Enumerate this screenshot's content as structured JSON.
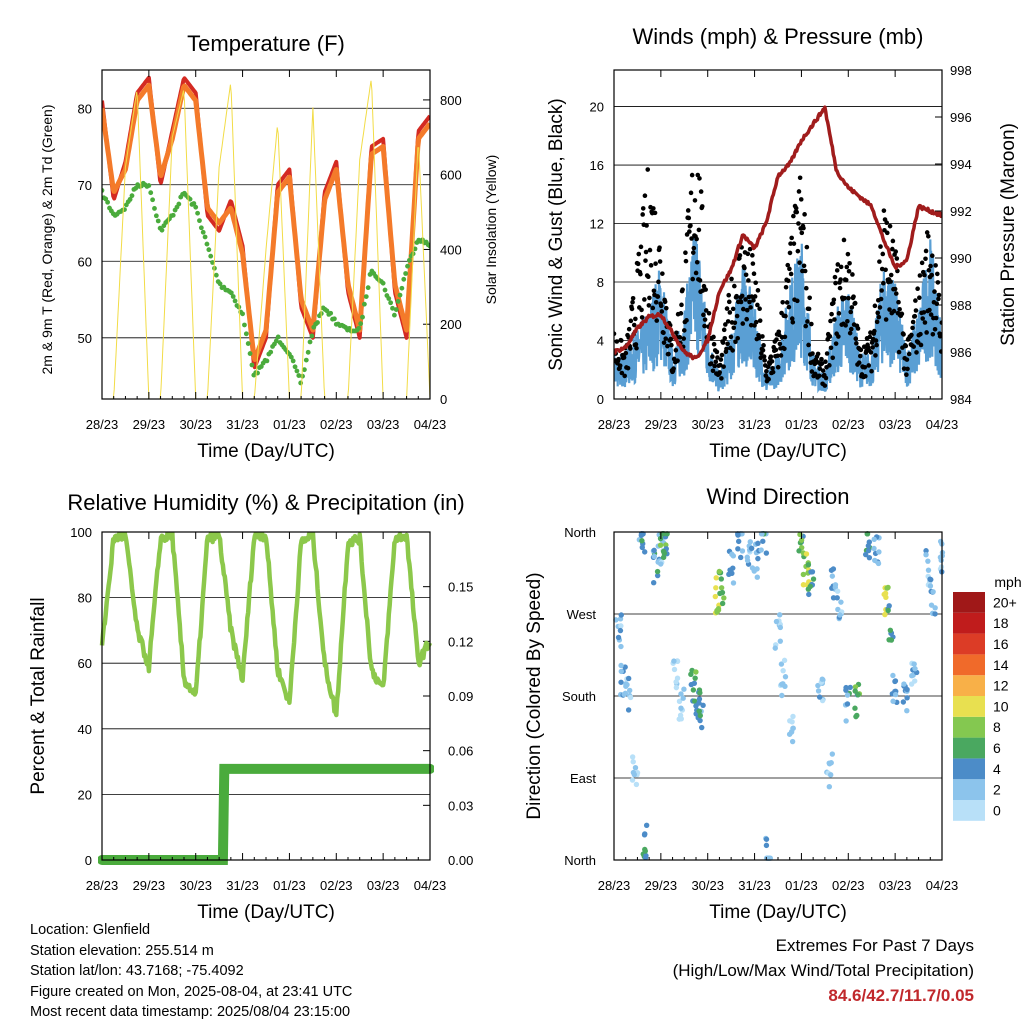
{
  "x_ticks": [
    "28/23",
    "29/23",
    "30/23",
    "31/23",
    "01/23",
    "02/23",
    "03/23",
    "04/23"
  ],
  "xlabel": "Time (Day/UTC)",
  "colors": {
    "red": "#d42a22",
    "orange": "#f47a2a",
    "green": "#4aab3c",
    "yellow": "#f2dc46",
    "black": "#000000",
    "blue": "#5a9fd4",
    "maroon": "#a01c1c",
    "rh": "#8cc84b",
    "precip": "#4aab3c",
    "extreme": "#c0282c"
  },
  "panels": {
    "temperature": {
      "title": "Temperature (F)",
      "ylabel_left": "2m & 9m T (Red, Orange) & 2m Td (Green)",
      "ylabel_right": "Solar Insolation (Yellow)",
      "left_ticks": [
        "50",
        "60",
        "70",
        "80"
      ],
      "right_ticks": [
        "0",
        "200",
        "400",
        "600",
        "800"
      ]
    },
    "winds": {
      "title": "Winds (mph) & Pressure (mb)",
      "ylabel_left": "Sonic Wind & Gust (Blue, Black)",
      "ylabel_right": "Station Pressure (Maroon)",
      "left_ticks": [
        "0",
        "4",
        "8",
        "12",
        "16",
        "20"
      ],
      "right_ticks": [
        "984",
        "986",
        "988",
        "990",
        "992",
        "994",
        "996",
        "998"
      ]
    },
    "humidity": {
      "title": "Relative Humidity (%) & Precipitation (in)",
      "ylabel_left": "Percent & Total Rainfall",
      "left_ticks": [
        "0",
        "20",
        "40",
        "60",
        "80",
        "100"
      ],
      "right_ticks": [
        "0.00",
        "0.03",
        "0.06",
        "0.09",
        "0.12",
        "0.15"
      ]
    },
    "direction": {
      "title": "Wind Direction",
      "ylabel_left": "Direction (Colored By Speed)",
      "left_ticks": [
        "North",
        "East",
        "South",
        "West",
        "North"
      ],
      "legend_title": "mph",
      "legend_labels": [
        "0",
        "2",
        "4",
        "6",
        "8",
        "10",
        "12",
        "14",
        "16",
        "18",
        "20+"
      ],
      "legend_colors": [
        "#b8e0f8",
        "#8cc4ec",
        "#4c8cc8",
        "#4aa860",
        "#84c850",
        "#e8e050",
        "#f8b048",
        "#f06a2a",
        "#dc3c26",
        "#c01c1c",
        "#a01818"
      ]
    }
  },
  "chart_data": [
    {
      "type": "line",
      "title": "Temperature (F)",
      "xlabel": "Time (Day/UTC)",
      "ylabel": "2m & 9m T (Red, Orange) & 2m Td (Green)",
      "y2label": "Solar Insolation (Yellow)",
      "x_days": [
        0,
        0.25,
        0.5,
        0.75,
        1,
        1.25,
        1.5,
        1.75,
        2,
        2.25,
        2.5,
        2.75,
        3,
        3.25,
        3.5,
        3.75,
        4,
        4.25,
        4.5,
        4.75,
        5,
        5.25,
        5.5,
        5.75,
        6,
        6.25,
        6.5,
        6.75,
        7
      ],
      "ylim": [
        42,
        85
      ],
      "y2lim": [
        0,
        880
      ],
      "series": [
        {
          "name": "2m T",
          "color": "#d42a22",
          "axis": "left",
          "values": [
            81,
            68,
            73,
            82,
            84,
            70,
            77,
            84,
            82,
            66,
            64,
            68,
            62,
            46,
            50,
            70,
            72,
            54,
            50,
            69,
            73,
            56,
            50,
            75,
            76,
            56,
            50,
            77,
            79
          ]
        },
        {
          "name": "9m T",
          "color": "#f47a2a",
          "axis": "left",
          "values": [
            80,
            69,
            72,
            81,
            83,
            71,
            76,
            83,
            81,
            67,
            65,
            67,
            61,
            47,
            51,
            69,
            71,
            55,
            51,
            68,
            72,
            57,
            51,
            74,
            75,
            57,
            51,
            76,
            78
          ]
        },
        {
          "name": "2m Td",
          "color": "#4aab3c",
          "axis": "left",
          "values": [
            69,
            66,
            67,
            70,
            70,
            64,
            66,
            69,
            67,
            62,
            57,
            56,
            53,
            45,
            47,
            50,
            48,
            44,
            51,
            54,
            52,
            51,
            51,
            59,
            57,
            53,
            59,
            63,
            62
          ]
        },
        {
          "name": "Solar Insolation",
          "color": "#f2dc46",
          "axis": "right",
          "values": [
            0,
            0,
            620,
            830,
            0,
            0,
            700,
            830,
            0,
            0,
            620,
            850,
            0,
            0,
            400,
            740,
            0,
            0,
            780,
            0,
            0,
            0,
            640,
            860,
            0,
            0,
            0,
            700,
            0
          ]
        }
      ]
    },
    {
      "type": "line",
      "title": "Winds (mph) & Pressure (mb)",
      "xlabel": "Time (Day/UTC)",
      "ylabel": "Sonic Wind & Gust (Blue, Black)",
      "y2label": "Station Pressure (Maroon)",
      "x_days": [
        0,
        0.25,
        0.5,
        0.75,
        1,
        1.25,
        1.5,
        1.75,
        2,
        2.25,
        2.5,
        2.75,
        3,
        3.25,
        3.5,
        3.75,
        4,
        4.25,
        4.5,
        4.75,
        5,
        5.25,
        5.5,
        5.75,
        6,
        6.25,
        6.5,
        6.75,
        7
      ],
      "ylim": [
        0,
        22.5
      ],
      "y2lim": [
        984,
        998
      ],
      "series": [
        {
          "name": "Sonic Wind",
          "color": "#5a9fd4",
          "axis": "left",
          "values": [
            2,
            2,
            3,
            4,
            6,
            2,
            4,
            8,
            3,
            1,
            3,
            6,
            4,
            1,
            2,
            5,
            7,
            2,
            1,
            4,
            5,
            2,
            2,
            6,
            5,
            2,
            4,
            7,
            3
          ]
        },
        {
          "name": "Gust",
          "color": "#000000",
          "axis": "left",
          "values": [
            4,
            3,
            8,
            14,
            10,
            3,
            8,
            17,
            6,
            2,
            7,
            10,
            8,
            2,
            4,
            9,
            14,
            3,
            2,
            8,
            10,
            3,
            4,
            12,
            9,
            3,
            7,
            11,
            5
          ]
        },
        {
          "name": "Station Pressure",
          "color": "#a01c1c",
          "axis": "right",
          "values": [
            986.0,
            986.2,
            987.0,
            987.5,
            987.6,
            986.8,
            986.0,
            985.7,
            986.5,
            988.6,
            989.5,
            991.0,
            990.4,
            991.5,
            993.5,
            994.0,
            995.0,
            995.7,
            996.4,
            993.7,
            993.0,
            992.6,
            992.2,
            990.8,
            989.6,
            989.9,
            992.2,
            992.0,
            991.8
          ]
        }
      ]
    },
    {
      "type": "line",
      "title": "Relative Humidity (%) & Precipitation (in)",
      "xlabel": "Time (Day/UTC)",
      "ylabel": "Percent & Total Rainfall",
      "x_days": [
        0,
        0.25,
        0.5,
        0.75,
        1,
        1.25,
        1.5,
        1.75,
        2,
        2.25,
        2.5,
        2.75,
        3,
        3.25,
        3.5,
        3.75,
        4,
        4.25,
        4.5,
        4.75,
        5,
        5.25,
        5.5,
        5.75,
        6,
        6.25,
        6.5,
        6.75,
        7
      ],
      "ylim": [
        0,
        100
      ],
      "y2lim": [
        0,
        0.18
      ],
      "series": [
        {
          "name": "Relative Humidity",
          "color": "#8cc84b",
          "axis": "left",
          "values": [
            65,
            98,
            99,
            70,
            59,
            98,
            99,
            55,
            50,
            98,
            99,
            70,
            55,
            99,
            99,
            58,
            48,
            97,
            99,
            60,
            44,
            97,
            98,
            58,
            52,
            98,
            99,
            60,
            67
          ]
        },
        {
          "name": "Total Precipitation",
          "color": "#4aab3c",
          "axis": "right",
          "values": [
            0,
            0,
            0,
            0,
            0,
            0,
            0,
            0,
            0,
            0,
            0,
            0.05,
            0.05,
            0.05,
            0.05,
            0.05,
            0.05,
            0.05,
            0.05,
            0.05,
            0.05,
            0.05,
            0.05,
            0.05,
            0.05,
            0.05,
            0.05,
            0.05,
            0.05
          ]
        }
      ]
    },
    {
      "type": "scatter",
      "title": "Wind Direction",
      "xlabel": "Time (Day/UTC)",
      "ylabel": "Direction (Colored By Speed)",
      "ylim": [
        0,
        360
      ],
      "points_day_deg_mph": [
        [
          0.1,
          250,
          3
        ],
        [
          0.2,
          200,
          4
        ],
        [
          0.3,
          180,
          3
        ],
        [
          0.45,
          100,
          1
        ],
        [
          0.6,
          350,
          5
        ],
        [
          0.65,
          20,
          6
        ],
        [
          0.9,
          320,
          5
        ],
        [
          1,
          340,
          3
        ],
        [
          1.05,
          350,
          8
        ],
        [
          1.1,
          355,
          6
        ],
        [
          1.3,
          200,
          2
        ],
        [
          1.45,
          170,
          2
        ],
        [
          1.7,
          190,
          7
        ],
        [
          1.8,
          170,
          6
        ],
        [
          1.85,
          160,
          5
        ],
        [
          2.2,
          290,
          10
        ],
        [
          2.3,
          300,
          8
        ],
        [
          2.5,
          320,
          4
        ],
        [
          2.7,
          350,
          4
        ],
        [
          2.9,
          340,
          3
        ],
        [
          3.05,
          330,
          4
        ],
        [
          3.2,
          355,
          5
        ],
        [
          3.3,
          5,
          4
        ],
        [
          3.5,
          250,
          2
        ],
        [
          3.6,
          200,
          2
        ],
        [
          3.8,
          150,
          2
        ],
        [
          4.0,
          340,
          7
        ],
        [
          4.1,
          320,
          10
        ],
        [
          4.2,
          310,
          6
        ],
        [
          4.4,
          180,
          3
        ],
        [
          4.6,
          100,
          2
        ],
        [
          4.7,
          300,
          4
        ],
        [
          4.8,
          280,
          3
        ],
        [
          5.0,
          170,
          5
        ],
        [
          5.2,
          175,
          7
        ],
        [
          5.4,
          350,
          6
        ],
        [
          5.6,
          340,
          4
        ],
        [
          5.8,
          280,
          10
        ],
        [
          5.9,
          260,
          6
        ],
        [
          6.0,
          190,
          4
        ],
        [
          6.2,
          180,
          5
        ],
        [
          6.4,
          200,
          3
        ],
        [
          6.7,
          320,
          3
        ],
        [
          6.8,
          290,
          4
        ],
        [
          6.95,
          330,
          3
        ]
      ]
    }
  ],
  "footer": {
    "location": "Location: Glenfield",
    "elevation": "Station elevation: 255.514 m",
    "latlon": "Station lat/lon: 43.7168; -75.4092",
    "created": "Figure created on Mon, 2025-08-04, at 23:41 UTC",
    "recent": "Most recent data timestamp: 2025/08/04 23:15:00"
  },
  "extremes": {
    "heading": "Extremes For Past 7 Days",
    "subheading": "(High/Low/Max Wind/Total Precipitation)",
    "values": "84.6/42.7/11.7/0.05"
  }
}
